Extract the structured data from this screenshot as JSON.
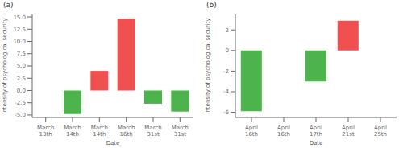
{
  "chart_data": [
    {
      "type": "bar",
      "title": "(a)",
      "categories": [
        "March 13th",
        "March 14th",
        "March 14th",
        "March 16th",
        "March 31st",
        "March 31st"
      ],
      "values": [
        0,
        -4.8,
        4.0,
        14.7,
        -2.7,
        -4.3
      ],
      "colors": [
        "#4db34d",
        "#4db34d",
        "#f05050",
        "#f05050",
        "#4db34d",
        "#4db34d"
      ],
      "xlabel": "Date",
      "ylabel": "Intensity of psychological security",
      "ylim": [
        -5.5,
        15.5
      ],
      "yticks": [
        {
          "value": -5,
          "label": "-5.0"
        },
        -2.5,
        {
          "value": 0,
          "label": "0.0"
        },
        2.5,
        {
          "value": 5,
          "label": "5.0"
        },
        7.5,
        {
          "value": 10,
          "label": "10.0"
        },
        12.5,
        {
          "value": 15,
          "label": "15.0"
        }
      ],
      "grid": false
    },
    {
      "type": "bar",
      "title": "(b)",
      "categories": [
        "April 16th",
        "April 16th",
        "April 17th",
        "April 21st",
        "April 25th"
      ],
      "values": [
        -5.9,
        0,
        -3.0,
        2.9,
        0
      ],
      "colors": [
        "#4db34d",
        "#4db34d",
        "#4db34d",
        "#f05050",
        "#4db34d"
      ],
      "xlabel": "Date",
      "ylabel": "Intensity of psychological security",
      "ylim": [
        -6.5,
        3.5
      ],
      "yticks": [
        -6,
        -4,
        -2,
        0,
        2
      ],
      "grid": false
    }
  ]
}
